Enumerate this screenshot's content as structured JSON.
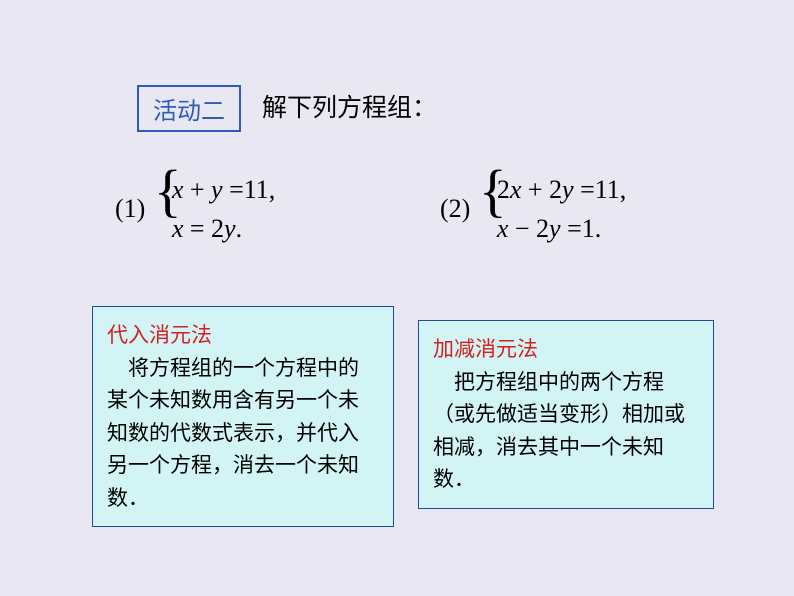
{
  "activity": {
    "label": "活动二"
  },
  "title": "解下列方程组：",
  "problems": {
    "p1": {
      "label": "(1)",
      "line1_pre": "x ",
      "line1_op": "+",
      "line1_mid": " y ",
      "line1_eq": "=",
      "line1_rhs": "11,",
      "line2_pre": "x ",
      "line2_eq": "=",
      "line2_mid": " 2",
      "line2_var": "y",
      "line2_end": "."
    },
    "p2": {
      "label": "(2)",
      "line1_a": "2",
      "line1_x": "x ",
      "line1_op": "+",
      "line1_b": " 2",
      "line1_y": "y ",
      "line1_eq": "=",
      "line1_rhs": "11,",
      "line2_x": "x ",
      "line2_op": "−",
      "line2_b": " 2",
      "line2_y": "y ",
      "line2_eq": "=",
      "line2_rhs": "1."
    }
  },
  "methods": {
    "substitution": {
      "title": "代入消元法",
      "body": "　将方程组的一个方程中的某个未知数用含有另一个未知数的代数式表示，并代入另一个方程，消去一个未知数．"
    },
    "elimination": {
      "title": "加减消元法",
      "body": "　把方程组中的两个方程（或先做适当变形）相加或相减，消去其中一个未知数．"
    }
  },
  "colors": {
    "background": "#e8e7f2",
    "box_border": "#2d5db7",
    "method_bg": "#d3f4f4",
    "method_border": "#1b4aa0",
    "red": "#d42020"
  }
}
